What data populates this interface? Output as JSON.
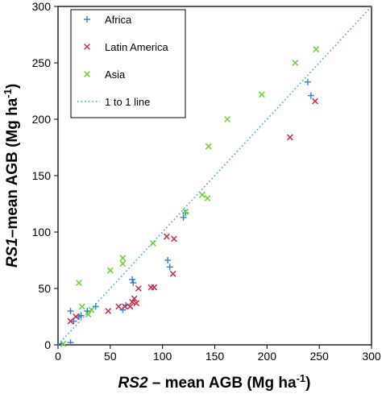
{
  "chart_data": {
    "type": "scatter",
    "title": "",
    "xlabel": {
      "italic": "RS2",
      "rest": " – mean AGB (Mg ha",
      "sup": "-1",
      "close": ")"
    },
    "ylabel": {
      "italic": "RS1",
      "rest": "–mean AGB (Mg ha",
      "sup": "-1",
      "close": ")"
    },
    "xlim": [
      0,
      300
    ],
    "ylim": [
      0,
      300
    ],
    "xticks": [
      0,
      50,
      100,
      150,
      200,
      250,
      300
    ],
    "yticks": [
      0,
      50,
      100,
      150,
      200,
      250,
      300
    ],
    "grid": false,
    "legend_position": "top-left",
    "reference_line": {
      "name": "1 to 1 line",
      "color": "#3aa7e0",
      "style": "dotted",
      "x": [
        0,
        300
      ],
      "y": [
        0,
        300
      ]
    },
    "series": [
      {
        "name": "Africa",
        "marker": "plus",
        "color": "#2f7fd6",
        "points": [
          [
            3,
            1
          ],
          [
            12,
            2
          ],
          [
            12,
            30
          ],
          [
            15,
            21
          ],
          [
            20,
            25
          ],
          [
            22,
            26
          ],
          [
            28,
            30
          ],
          [
            36,
            34
          ],
          [
            62,
            31
          ],
          [
            65,
            35
          ],
          [
            71,
            58
          ],
          [
            72,
            55
          ],
          [
            105,
            75
          ],
          [
            107,
            69
          ],
          [
            120,
            113
          ],
          [
            122,
            117
          ],
          [
            239,
            233
          ],
          [
            242,
            221
          ]
        ]
      },
      {
        "name": "Latin America",
        "marker": "x",
        "color": "#cc2a44",
        "points": [
          [
            12,
            21
          ],
          [
            17,
            25
          ],
          [
            48,
            30
          ],
          [
            58,
            34
          ],
          [
            64,
            34
          ],
          [
            69,
            34
          ],
          [
            71,
            38
          ],
          [
            73,
            41
          ],
          [
            75,
            37
          ],
          [
            77,
            50
          ],
          [
            89,
            51
          ],
          [
            92,
            51
          ],
          [
            104,
            96
          ],
          [
            110,
            63
          ],
          [
            111,
            94
          ],
          [
            222,
            184
          ],
          [
            246,
            216
          ]
        ]
      },
      {
        "name": "Asia",
        "marker": "x",
        "color": "#66d32a",
        "points": [
          [
            5,
            1
          ],
          [
            20,
            55
          ],
          [
            23,
            34
          ],
          [
            29,
            27
          ],
          [
            32,
            31
          ],
          [
            50,
            66
          ],
          [
            62,
            77
          ],
          [
            62,
            72
          ],
          [
            91,
            90
          ],
          [
            122,
            118
          ],
          [
            138,
            133
          ],
          [
            143,
            130
          ],
          [
            144,
            176
          ],
          [
            162,
            200
          ],
          [
            195,
            222
          ],
          [
            227,
            250
          ],
          [
            247,
            262
          ]
        ]
      }
    ]
  }
}
